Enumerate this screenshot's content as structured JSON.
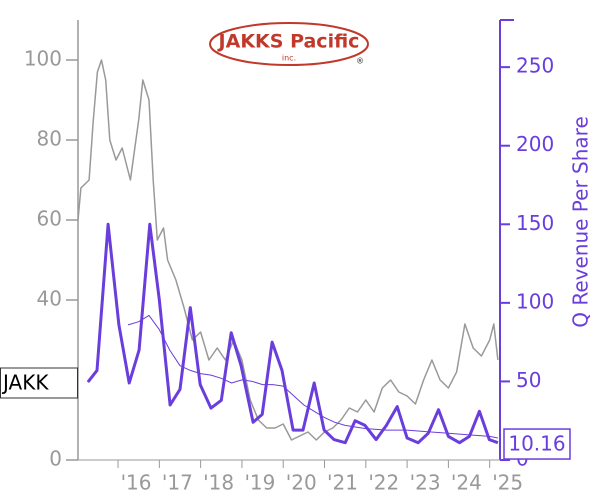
{
  "chart_data": {
    "type": "line",
    "logo": {
      "name": "JAKKS Pacific",
      "suffix": "inc.",
      "mark": "®"
    },
    "ticker": "JAKK",
    "y2label": "Q Revenue Per Share",
    "current_value": {
      "value": 10.16,
      "label": "10.16"
    },
    "xlim": [
      2015.03,
      2025.25
    ],
    "xticks": [
      {
        "value": 2016,
        "label": "'16"
      },
      {
        "value": 2017,
        "label": "'17"
      },
      {
        "value": 2018,
        "label": "'18"
      },
      {
        "value": 2019,
        "label": "'19"
      },
      {
        "value": 2020,
        "label": "'20"
      },
      {
        "value": 2021,
        "label": "'21"
      },
      {
        "value": 2022,
        "label": "'22"
      },
      {
        "value": 2023,
        "label": "'23"
      },
      {
        "value": 2024,
        "label": "'24"
      },
      {
        "value": 2025,
        "label": "'25"
      }
    ],
    "ylim": [
      0,
      110
    ],
    "yticks": [
      0,
      20,
      40,
      60,
      80,
      100
    ],
    "y2lim": [
      0,
      280
    ],
    "y2ticks": [
      0,
      50,
      100,
      150,
      200,
      250
    ],
    "y_color": "#999999",
    "y2_color": "#6a3ddd",
    "series": [
      {
        "color": "#999999",
        "width": 1.5,
        "axis": "y",
        "x": [
          2015.03,
          2015.1,
          2015.3,
          2015.4,
          2015.5,
          2015.6,
          2015.7,
          2015.8,
          2015.95,
          2016.1,
          2016.3,
          2016.5,
          2016.6,
          2016.75,
          2016.85,
          2016.95,
          2017.1,
          2017.2,
          2017.4,
          2017.6,
          2017.8,
          2018.0,
          2018.2,
          2018.4,
          2018.6,
          2018.8,
          2019.0,
          2019.2,
          2019.4,
          2019.6,
          2019.8,
          2020.0,
          2020.2,
          2020.4,
          2020.6,
          2020.8,
          2021.0,
          2021.2,
          2021.4,
          2021.6,
          2021.8,
          2022.0,
          2022.2,
          2022.4,
          2022.6,
          2022.8,
          2023.0,
          2023.2,
          2023.4,
          2023.6,
          2023.8,
          2024.0,
          2024.2,
          2024.4,
          2024.6,
          2024.8,
          2025.0,
          2025.1,
          2025.2
        ],
        "values": [
          60,
          68,
          70,
          85,
          97,
          100,
          95,
          80,
          75,
          78,
          70,
          85,
          95,
          90,
          70,
          55,
          58,
          50,
          45,
          38,
          30,
          32,
          25,
          28,
          25,
          30,
          25,
          15,
          10,
          8,
          8,
          9,
          5,
          6,
          7,
          5,
          7,
          8,
          10,
          13,
          12,
          15,
          12,
          18,
          20,
          17,
          16,
          14,
          20,
          25,
          20,
          18,
          22,
          34,
          28,
          26,
          30,
          34,
          25
        ]
      },
      {
        "color": "#6a3ddd",
        "width": 3,
        "axis": "y2",
        "x": [
          2015.27,
          2015.49,
          2015.76,
          2016.02,
          2016.27,
          2016.51,
          2016.77,
          2017.0,
          2017.26,
          2017.5,
          2017.75,
          2017.99,
          2018.25,
          2018.5,
          2018.74,
          2018.98,
          2019.27,
          2019.49,
          2019.73,
          2019.97,
          2020.24,
          2020.48,
          2020.75,
          2020.99,
          2021.23,
          2021.5,
          2021.74,
          2021.98,
          2022.25,
          2022.5,
          2022.76,
          2023.0,
          2023.27,
          2023.51,
          2023.76,
          2024.0,
          2024.27,
          2024.51,
          2024.75,
          2024.99,
          2025.2
        ],
        "values": [
          49.6,
          57,
          150,
          86,
          49,
          70,
          150,
          102,
          35,
          45,
          97,
          48,
          33,
          38,
          81,
          60,
          24,
          29,
          75,
          57,
          19,
          19,
          49,
          19,
          13,
          11,
          25,
          22,
          13,
          22,
          34,
          14,
          11,
          17,
          32,
          15,
          11,
          15,
          31,
          13,
          11
        ]
      },
      {
        "color": "#6a3ddd",
        "width": 1,
        "axis": "y2",
        "x": [
          2016.24,
          2016.5,
          2016.75,
          2017.0,
          2017.25,
          2017.5,
          2017.75,
          2018.0,
          2018.25,
          2018.5,
          2018.75,
          2019.0,
          2019.25,
          2019.5,
          2019.75,
          2020.0,
          2020.25,
          2020.5,
          2020.75,
          2021.0,
          2021.25,
          2021.5,
          2021.75,
          2022.0,
          2022.5,
          2023.0,
          2023.5,
          2024.0,
          2024.5,
          2025.0,
          2025.2
        ],
        "values": [
          86,
          88,
          92,
          83,
          70,
          60,
          57,
          55,
          54,
          52,
          49,
          51,
          50,
          48,
          48,
          47,
          41,
          35,
          31,
          27,
          24,
          22,
          21,
          20,
          19,
          19,
          18,
          17,
          16,
          15,
          14
        ]
      }
    ]
  }
}
